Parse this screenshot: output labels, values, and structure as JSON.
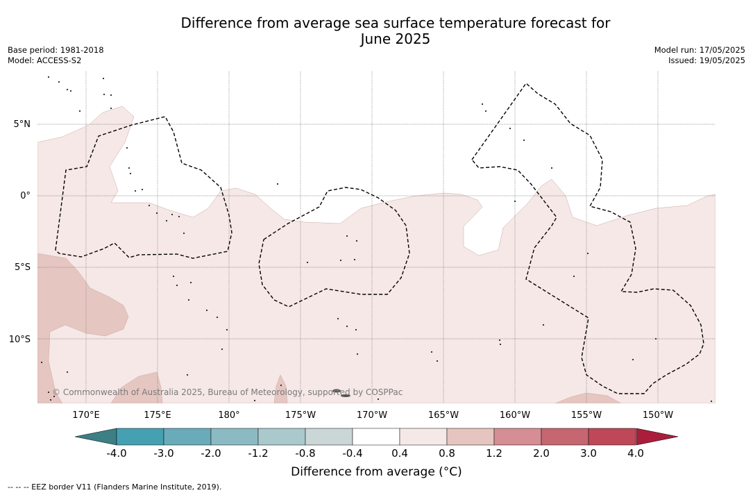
{
  "title_line1": "Difference from average sea surface temperature forecast for",
  "title_line2": "June 2025",
  "base_period": "Base period: 1981-2018",
  "model": "Model: ACCESS-S2",
  "model_run": "Model run: 17/05/2025",
  "issued": "Issued: 19/05/2025",
  "copyright": "© Commonwealth of Australia 2025, Bureau of Meteorology, supported by COSPPac",
  "footer_note": "--  --  -- EEZ border V11 (Flanders Marine Institute, 2019).",
  "lon_labels": [
    "170°E",
    "175°E",
    "180°",
    "175°W",
    "170°W",
    "165°W",
    "160°W",
    "155°W",
    "150°W"
  ],
  "lat_labels": [
    "5°N",
    "0°",
    "5°S",
    "10°S"
  ],
  "colorbar": {
    "label": "Difference from average (°C)",
    "ticks": [
      "-4.0",
      "-3.0",
      "-2.0",
      "-1.2",
      "-0.8",
      "-0.4",
      "0.4",
      "0.8",
      "1.2",
      "2.0",
      "3.0",
      "4.0"
    ],
    "colors": [
      "#45a0b2",
      "#6aabba",
      "#8cbac3",
      "#a9c9cc",
      "#cbd6d6",
      "#ffffff",
      "#f5e9e8",
      "#e6c5c1",
      "#d48e94",
      "#c56670",
      "#be4858"
    ],
    "under_color": "#3c7f85",
    "over_color": "#aa1e3c"
  },
  "colors": {
    "anomaly_light": "#f5e8e6",
    "anomaly_medium": "#e6c6c1",
    "eez_line": "#000000"
  }
}
